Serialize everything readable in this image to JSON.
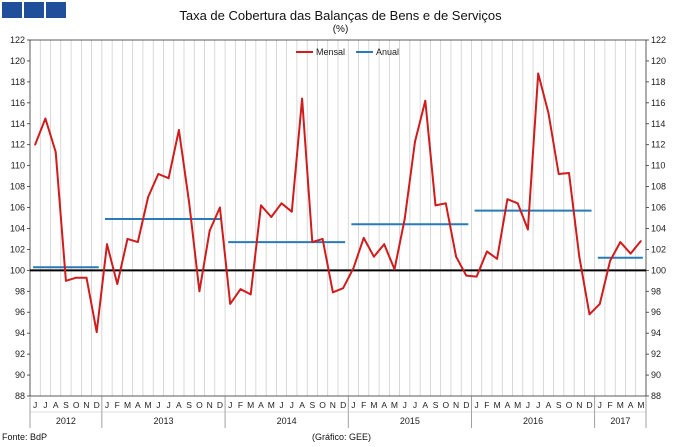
{
  "title": "Taxa de Cobertura das Balanças de Bens e de Serviços",
  "subtitle": "(%)",
  "source": "Fonte: BdP",
  "credit": "(Gráfico: GEE)",
  "colors": {
    "mensal": "#d01c1c",
    "anual": "#2a79b8",
    "reference": "#000000",
    "brand_blue": "#1f4e9a"
  },
  "chart_data": {
    "type": "line",
    "ylim": [
      88,
      122
    ],
    "yticks": [
      88,
      90,
      92,
      94,
      96,
      98,
      100,
      102,
      104,
      106,
      108,
      110,
      112,
      114,
      116,
      118,
      120,
      122
    ],
    "legend_position": "top-center",
    "grid": "vertical",
    "reference_line": 100,
    "month_labels": [
      "J",
      "J",
      "A",
      "S",
      "O",
      "N",
      "D",
      "J",
      "F",
      "M",
      "A",
      "M",
      "J",
      "J",
      "A",
      "S",
      "O",
      "N",
      "D",
      "J",
      "F",
      "M",
      "A",
      "M",
      "J",
      "J",
      "A",
      "S",
      "O",
      "N",
      "D",
      "J",
      "F",
      "M",
      "A",
      "M",
      "J",
      "J",
      "A",
      "S",
      "O",
      "N",
      "D",
      "J",
      "F",
      "M",
      "A",
      "M",
      "J",
      "J",
      "A",
      "S",
      "O",
      "N",
      "D",
      "J",
      "F",
      "M",
      "A",
      "M"
    ],
    "years": [
      {
        "label": "2012",
        "start": 0,
        "count": 7
      },
      {
        "label": "2013",
        "start": 7,
        "count": 12
      },
      {
        "label": "2014",
        "start": 19,
        "count": 12
      },
      {
        "label": "2015",
        "start": 31,
        "count": 12
      },
      {
        "label": "2016",
        "start": 43,
        "count": 12
      },
      {
        "label": "2017",
        "start": 55,
        "count": 5
      }
    ],
    "series": [
      {
        "name": "Mensal",
        "values": [
          112.0,
          114.5,
          111.3,
          99.0,
          99.3,
          99.3,
          94.1,
          102.5,
          98.7,
          103.0,
          102.7,
          107.0,
          109.2,
          108.8,
          113.4,
          106.5,
          98.0,
          103.8,
          106.0,
          96.8,
          98.2,
          97.7,
          106.2,
          105.1,
          106.4,
          105.6,
          116.4,
          102.7,
          103.0,
          97.9,
          98.3,
          100.2,
          103.1,
          101.3,
          102.5,
          100.1,
          104.9,
          112.3,
          116.2,
          106.2,
          106.4,
          101.3,
          99.5,
          99.4,
          101.8,
          101.1,
          106.8,
          106.4,
          103.9,
          118.8,
          115.0,
          109.2,
          109.3,
          101.3,
          95.8,
          96.8,
          100.9,
          102.7,
          101.6,
          102.8
        ]
      },
      {
        "name": "Anual",
        "segments": [
          {
            "from": 0,
            "to": 6,
            "value": 100.3
          },
          {
            "from": 7,
            "to": 18,
            "value": 104.9
          },
          {
            "from": 19,
            "to": 30,
            "value": 102.7
          },
          {
            "from": 31,
            "to": 42,
            "value": 104.4
          },
          {
            "from": 43,
            "to": 54,
            "value": 105.7
          },
          {
            "from": 55,
            "to": 59,
            "value": 101.2
          }
        ]
      }
    ]
  }
}
